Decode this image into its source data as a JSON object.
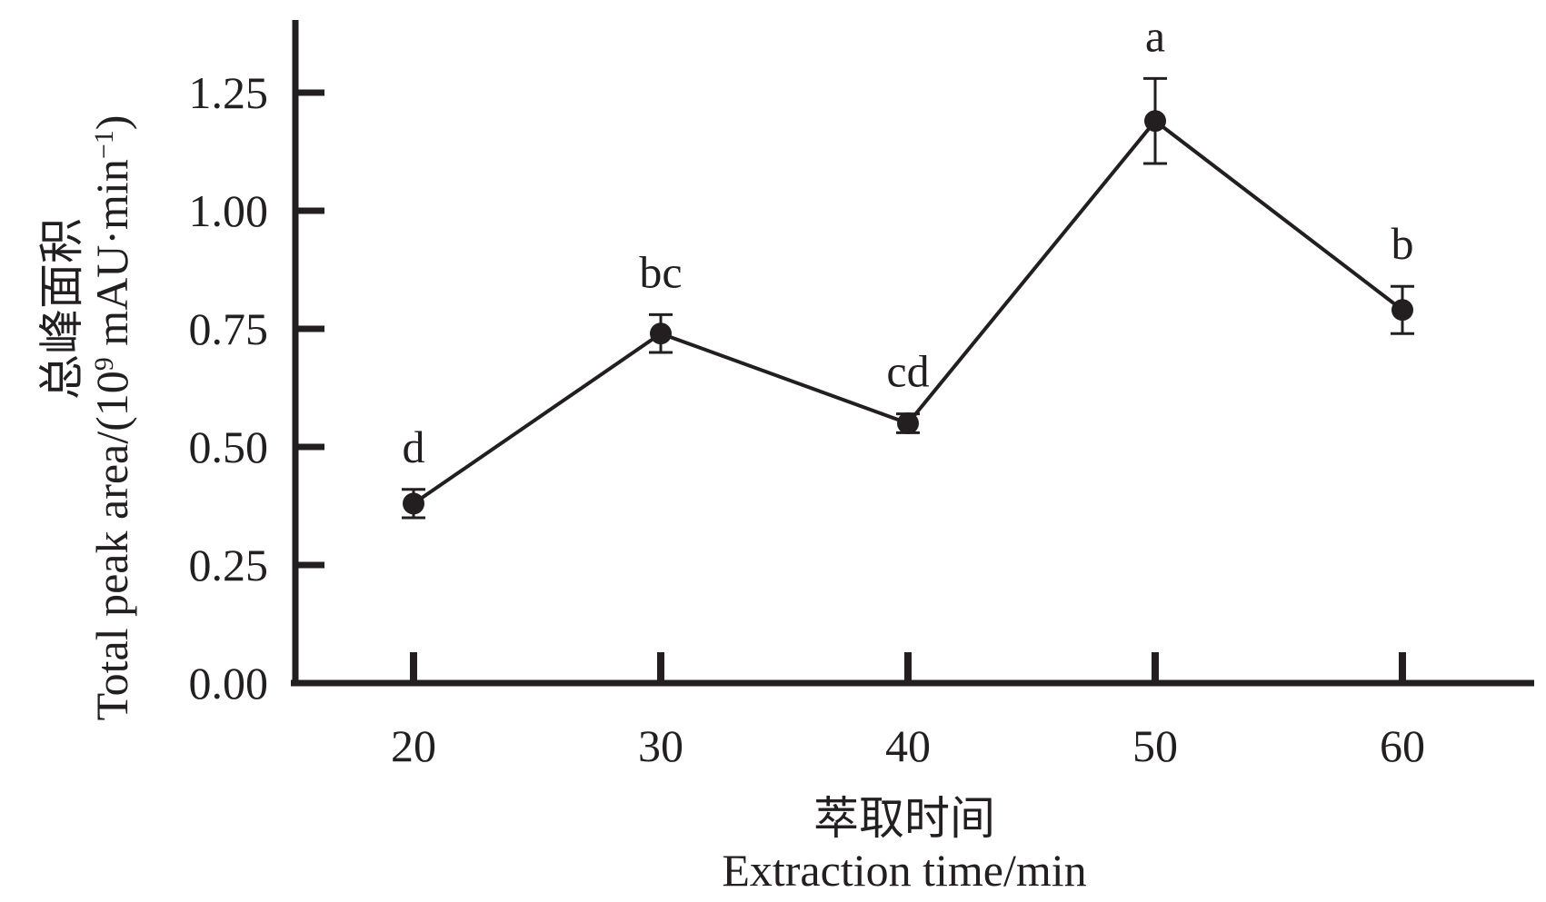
{
  "chart_data": {
    "type": "line",
    "x": [
      20,
      30,
      40,
      50,
      60
    ],
    "x_tick_labels": [
      "20",
      "30",
      "40",
      "50",
      "60"
    ],
    "series": [
      {
        "values": [
          0.38,
          0.74,
          0.55,
          1.19,
          0.79
        ],
        "error": [
          0.03,
          0.04,
          0.02,
          0.09,
          0.05
        ],
        "significance_labels": [
          "d",
          "bc",
          "cd",
          "a",
          "b"
        ]
      }
    ],
    "xlabel_zh": "萃取时间",
    "xlabel": "Extraction time/min",
    "ylabel_zh": "总峰面积",
    "ylabel_prefix": "Total peak area/(10",
    "ylabel_exp": "9",
    "ylabel_middle": " mAU·min",
    "ylabel_exp2": "−1",
    "ylabel_suffix": ")",
    "ylim": [
      0,
      1.35
    ],
    "y_ticks": [
      0,
      0.25,
      0.5,
      0.75,
      1.0,
      1.25
    ],
    "y_tick_labels": [
      "0.00",
      "0.25",
      "0.50",
      "0.75",
      "1.00",
      "1.25"
    ],
    "grid": false,
    "line_color": "#231f20"
  }
}
